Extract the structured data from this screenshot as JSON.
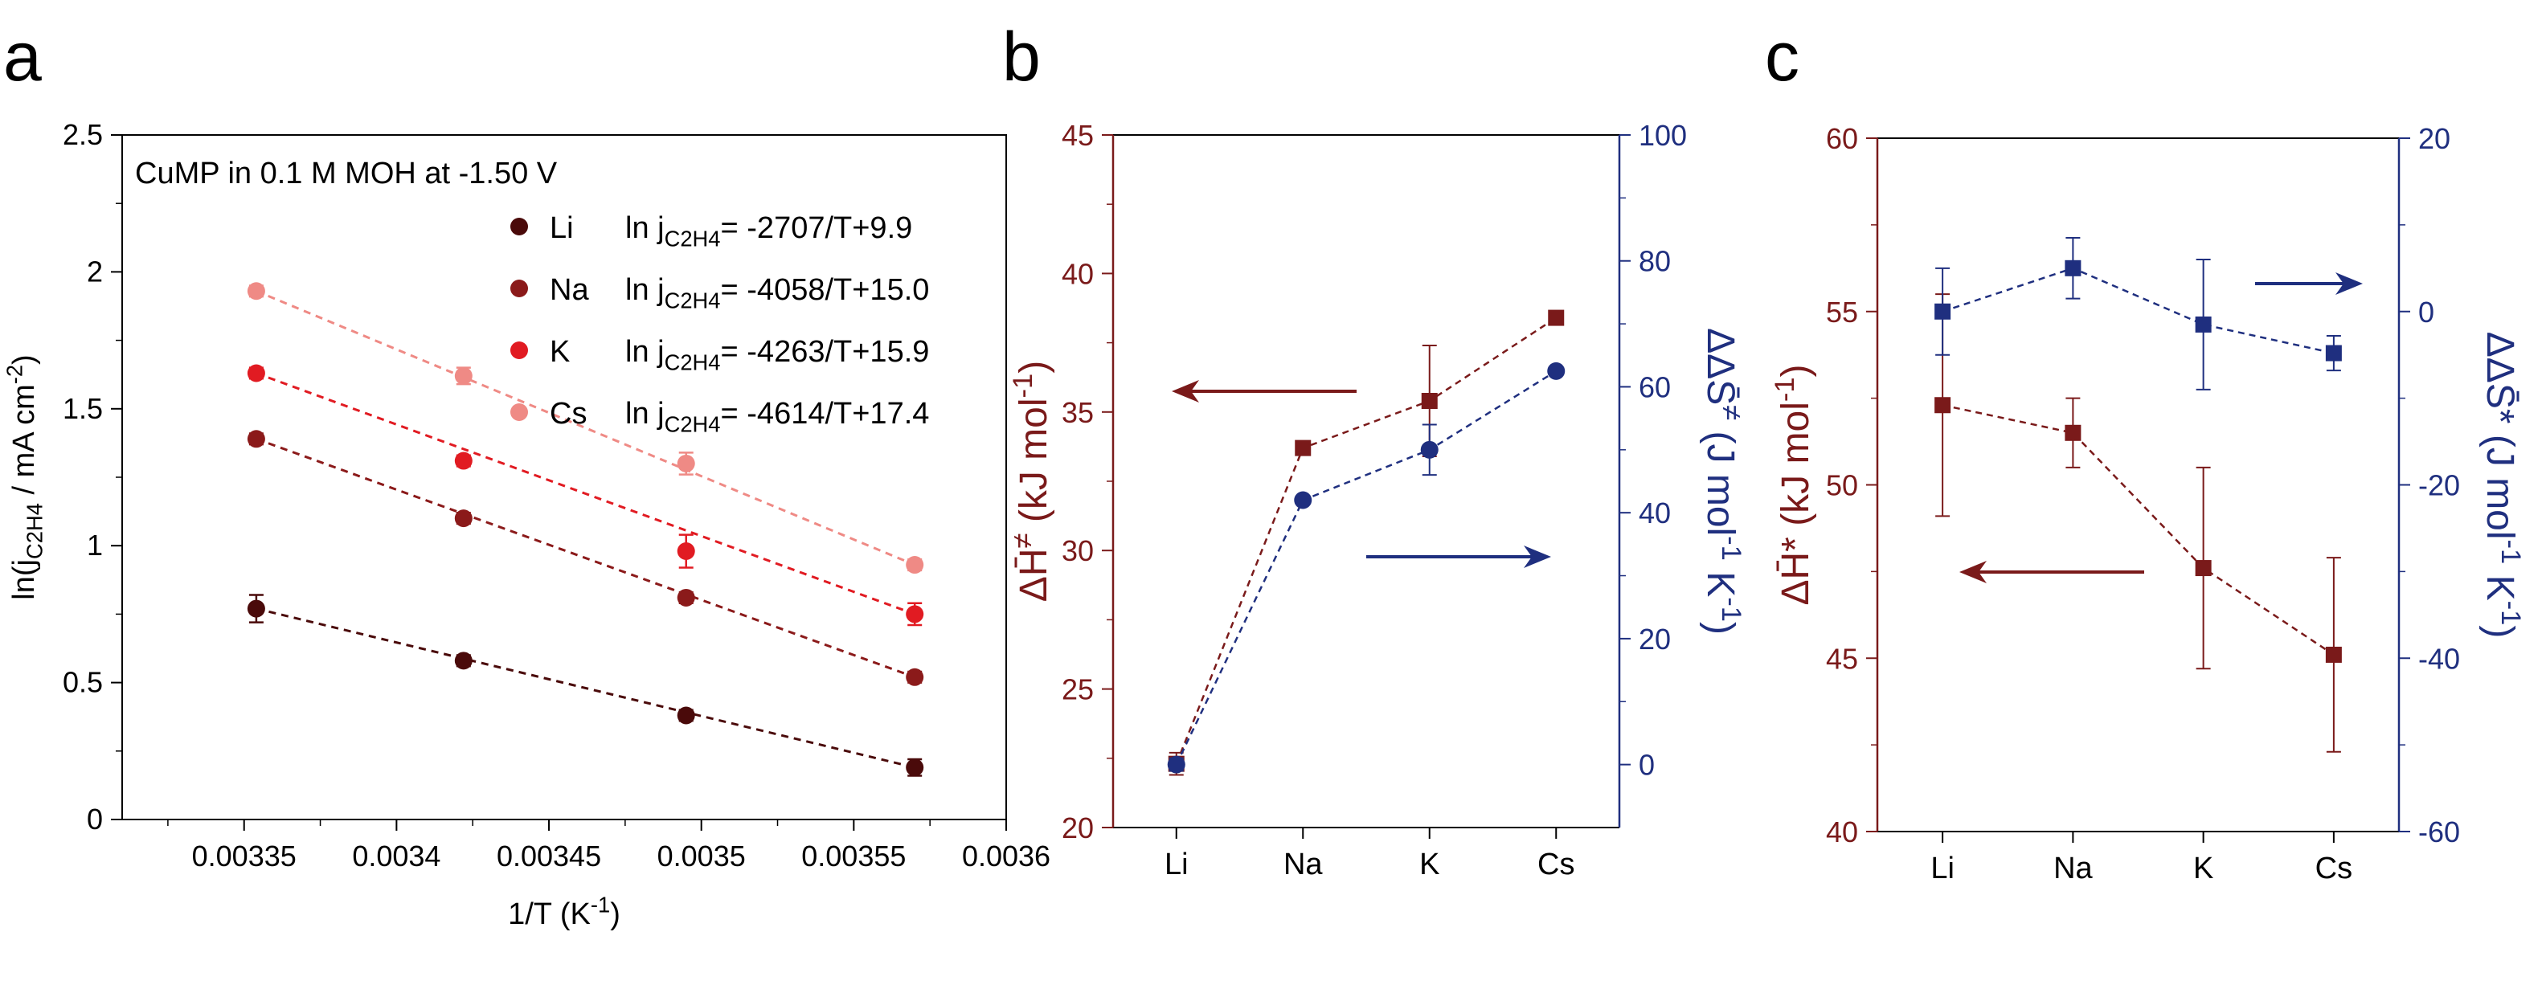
{
  "panel_labels": [
    "a",
    "b",
    "c"
  ],
  "colors": {
    "li": "#4a0a0a",
    "na": "#8b1a1a",
    "k": "#e11b22",
    "cs": "#ef8a85",
    "dark_red": "#7a1a1a",
    "navy": "#1f2f7f",
    "axis": "#000000"
  },
  "chart_data": [
    {
      "panel": "a",
      "type": "scatter",
      "annotation": "CuMP in 0.1 M MOH at -1.50 V",
      "xlabel": "1/T (K⁻¹)",
      "ylabel": "ln(j C2H4 / mA cm⁻²)",
      "xlim": [
        0.00331,
        0.0036
      ],
      "ylim": [
        0,
        2.5
      ],
      "xticks": [
        "0.00335",
        "0.0034",
        "0.00345",
        "0.0035",
        "0.00355",
        "0.0036"
      ],
      "yticks": [
        "0",
        "0.5",
        "1",
        "1.5",
        "2",
        "2.5"
      ],
      "x": [
        0.003354,
        0.003422,
        0.003495,
        0.00357
      ],
      "legend_position": "top-right",
      "series": [
        {
          "name": "Li",
          "color": "li",
          "fit": "ln jC2H4= -2707/T+9.9",
          "slope": -2707,
          "intercept": 9.85,
          "values": [
            0.77,
            0.58,
            0.38,
            0.19
          ],
          "errors": [
            0.05,
            0.02,
            0.02,
            0.03
          ]
        },
        {
          "name": "Na",
          "color": "na",
          "fit": "ln jC2H4= -4058/T+15.0",
          "slope": -4058,
          "intercept": 15.0,
          "values": [
            1.39,
            1.1,
            0.81,
            0.52
          ],
          "errors": [
            0.02,
            0.02,
            0.02,
            0.02
          ]
        },
        {
          "name": "K",
          "color": "k",
          "fit": "ln jC2H4= -4263/T+15.9",
          "slope": -4263,
          "intercept": 15.9,
          "values": [
            1.63,
            1.31,
            0.98,
            0.75
          ],
          "errors": [
            0.02,
            0.02,
            0.06,
            0.04
          ]
        },
        {
          "name": "Cs",
          "color": "cs",
          "fit": "ln jC2H4= -4614/T+17.4",
          "slope": -4614,
          "intercept": 17.4,
          "values": [
            1.93,
            1.62,
            1.3,
            0.93
          ],
          "errors": [
            0.02,
            0.03,
            0.04,
            0.02
          ]
        }
      ]
    },
    {
      "panel": "b",
      "type": "line",
      "categories": [
        "Li",
        "Na",
        "K",
        "Cs"
      ],
      "ylabel_left": "ΔH̄≠ (kJ mol⁻¹)",
      "ylabel_right": "ΔΔS̄≠ (J mol⁻¹ K⁻¹)",
      "ylim_left": [
        20,
        45
      ],
      "ylim_right": [
        -10,
        100
      ],
      "yticks_left": [
        "20",
        "25",
        "30",
        "35",
        "40",
        "45"
      ],
      "yticks_right": [
        "0",
        "20",
        "40",
        "60",
        "80",
        "100"
      ],
      "series": [
        {
          "name": "ΔH̄≠",
          "axis": "left",
          "marker": "square",
          "color": "dark_red",
          "values": [
            22.3,
            33.7,
            35.4,
            38.4
          ],
          "errors": [
            0.4,
            0.2,
            2.0,
            0.2
          ]
        },
        {
          "name": "ΔΔS̄≠",
          "axis": "right",
          "marker": "circle",
          "color": "navy",
          "values": [
            0,
            42,
            50,
            62.5
          ],
          "errors": [
            1.0,
            0.5,
            4.0,
            0.5
          ]
        }
      ]
    },
    {
      "panel": "c",
      "type": "line",
      "categories": [
        "Li",
        "Na",
        "K",
        "Cs"
      ],
      "ylabel_left": "ΔH̄* (kJ mol⁻¹)",
      "ylabel_right": "ΔΔS̄* (J mol⁻¹ K⁻¹)",
      "ylim_left": [
        40,
        60
      ],
      "ylim_right": [
        -60,
        20
      ],
      "yticks_left": [
        "40",
        "45",
        "50",
        "55",
        "60"
      ],
      "yticks_right": [
        "-60",
        "-40",
        "-20",
        "0",
        "20"
      ],
      "series": [
        {
          "name": "ΔH̄*",
          "axis": "left",
          "marker": "square",
          "color": "dark_red",
          "values": [
            52.3,
            51.5,
            47.6,
            45.1
          ],
          "errors": [
            3.2,
            1.0,
            2.9,
            2.8
          ]
        },
        {
          "name": "ΔΔS̄*",
          "axis": "right",
          "marker": "square",
          "color": "navy",
          "values": [
            0,
            5,
            -1.5,
            -4.8
          ],
          "errors": [
            5.0,
            3.5,
            7.5,
            2.0
          ]
        }
      ]
    }
  ]
}
